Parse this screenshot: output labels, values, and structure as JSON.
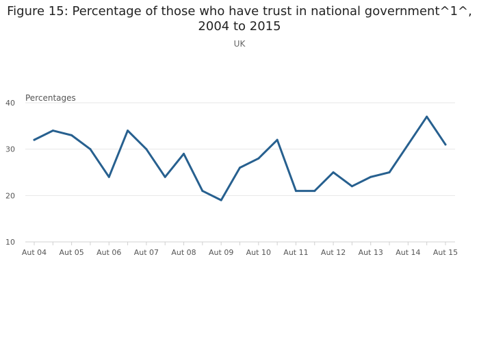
{
  "chart_data": {
    "type": "line",
    "title_line1": "Figure 15: Percentage of those who have trust in national government^1^,",
    "title_line2": "2004 to 2015",
    "subtitle": "UK",
    "ylabel": "Percentages",
    "xlabel": "",
    "ylim": [
      10,
      40
    ],
    "yticks": [
      10,
      20,
      30,
      40
    ],
    "grid": true,
    "legend": "none",
    "x_tick_labels": [
      "Aut 04",
      "Aut 05",
      "Aut 06",
      "Aut 07",
      "Aut 08",
      "Aut 09",
      "Aut 10",
      "Aut 11",
      "Aut 12",
      "Aut 13",
      "Aut 14",
      "Aut 15"
    ],
    "x": [
      "Aut 04",
      "Spr 05",
      "Aut 05",
      "Spr 06",
      "Aut 06",
      "Spr 07",
      "Aut 07",
      "Spr 08",
      "Aut 08",
      "Spr 09",
      "Aut 09",
      "Spr 10",
      "Aut 10",
      "Spr 11",
      "Aut 11",
      "Spr 12",
      "Aut 12",
      "Spr 13",
      "Aut 13",
      "Spr 14",
      "Aut 14",
      "Spr 15",
      "Aut 15"
    ],
    "series": [
      {
        "values": [
          32,
          34,
          33,
          30,
          24,
          34,
          30,
          24,
          29,
          21,
          19,
          26,
          28,
          32,
          21,
          21,
          25,
          22,
          24,
          25,
          31,
          37,
          31
        ]
      }
    ],
    "colors": {
      "line": "#27608F",
      "grid": "#E6E6E6",
      "axis": "#D0D0D0"
    }
  }
}
